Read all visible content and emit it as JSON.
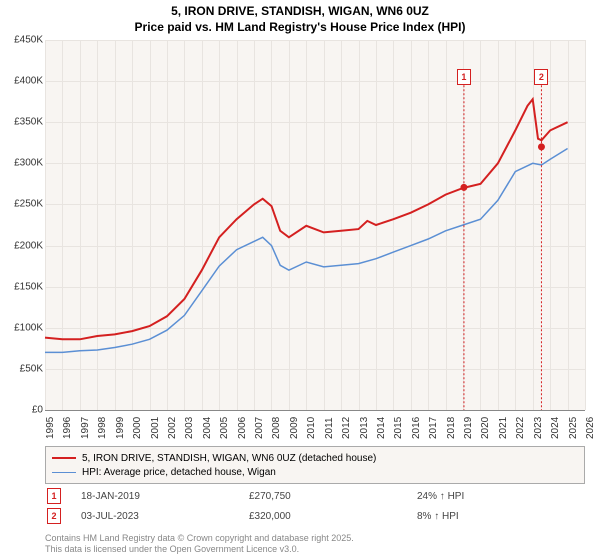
{
  "title_line1": "5, IRON DRIVE, STANDISH, WIGAN, WN6 0UZ",
  "title_line2": "Price paid vs. HM Land Registry's House Price Index (HPI)",
  "chart": {
    "type": "line",
    "background_color": "#f8f5f2",
    "grid_color": "#e8e4e0",
    "ylim": [
      0,
      450000
    ],
    "ytick_step": 50000,
    "yticks": [
      "£0",
      "£50K",
      "£100K",
      "£150K",
      "£200K",
      "£250K",
      "£300K",
      "£350K",
      "£400K",
      "£450K"
    ],
    "xlim": [
      1995,
      2026
    ],
    "xticks": [
      1995,
      1996,
      1997,
      1998,
      1999,
      2000,
      2001,
      2002,
      2003,
      2004,
      2005,
      2006,
      2007,
      2008,
      2009,
      2010,
      2011,
      2012,
      2013,
      2014,
      2015,
      2016,
      2017,
      2018,
      2019,
      2020,
      2021,
      2022,
      2023,
      2024,
      2025,
      2026
    ],
    "series": [
      {
        "name": "price_paid",
        "color": "#d42020",
        "width": 2,
        "points": [
          [
            1995,
            88000
          ],
          [
            1996,
            86000
          ],
          [
            1997,
            86000
          ],
          [
            1998,
            90000
          ],
          [
            1999,
            92000
          ],
          [
            2000,
            96000
          ],
          [
            2001,
            102000
          ],
          [
            2002,
            114000
          ],
          [
            2003,
            135000
          ],
          [
            2004,
            170000
          ],
          [
            2005,
            210000
          ],
          [
            2006,
            232000
          ],
          [
            2007,
            250000
          ],
          [
            2007.5,
            257000
          ],
          [
            2008,
            248000
          ],
          [
            2008.5,
            218000
          ],
          [
            2009,
            210000
          ],
          [
            2010,
            224000
          ],
          [
            2011,
            216000
          ],
          [
            2012,
            218000
          ],
          [
            2013,
            220000
          ],
          [
            2013.5,
            230000
          ],
          [
            2014,
            225000
          ],
          [
            2015,
            232000
          ],
          [
            2016,
            240000
          ],
          [
            2017,
            250000
          ],
          [
            2018,
            262000
          ],
          [
            2019,
            270000
          ],
          [
            2020,
            275000
          ],
          [
            2021,
            300000
          ],
          [
            2022,
            340000
          ],
          [
            2022.7,
            370000
          ],
          [
            2023,
            378000
          ],
          [
            2023.3,
            330000
          ],
          [
            2023.5,
            328000
          ],
          [
            2024,
            340000
          ],
          [
            2025,
            350000
          ]
        ]
      },
      {
        "name": "hpi",
        "color": "#5b8fd4",
        "width": 1.5,
        "points": [
          [
            1995,
            70000
          ],
          [
            1996,
            70000
          ],
          [
            1997,
            72000
          ],
          [
            1998,
            73000
          ],
          [
            1999,
            76000
          ],
          [
            2000,
            80000
          ],
          [
            2001,
            86000
          ],
          [
            2002,
            97000
          ],
          [
            2003,
            115000
          ],
          [
            2004,
            145000
          ],
          [
            2005,
            175000
          ],
          [
            2006,
            195000
          ],
          [
            2007,
            205000
          ],
          [
            2007.5,
            210000
          ],
          [
            2008,
            200000
          ],
          [
            2008.5,
            176000
          ],
          [
            2009,
            170000
          ],
          [
            2010,
            180000
          ],
          [
            2011,
            174000
          ],
          [
            2012,
            176000
          ],
          [
            2013,
            178000
          ],
          [
            2014,
            184000
          ],
          [
            2015,
            192000
          ],
          [
            2016,
            200000
          ],
          [
            2017,
            208000
          ],
          [
            2018,
            218000
          ],
          [
            2019,
            225000
          ],
          [
            2020,
            232000
          ],
          [
            2021,
            255000
          ],
          [
            2022,
            290000
          ],
          [
            2023,
            300000
          ],
          [
            2023.5,
            298000
          ],
          [
            2024,
            305000
          ],
          [
            2025,
            318000
          ]
        ]
      }
    ],
    "sale_markers": [
      {
        "label": "1",
        "x": 2019.05,
        "y": 270750,
        "top_y": 395000
      },
      {
        "label": "2",
        "x": 2023.5,
        "y": 320000,
        "top_y": 395000
      }
    ],
    "sale_dot_color": "#d42020"
  },
  "legend": {
    "items": [
      {
        "color": "#d42020",
        "width": 2,
        "label": "5, IRON DRIVE, STANDISH, WIGAN, WN6 0UZ (detached house)"
      },
      {
        "color": "#5b8fd4",
        "width": 1.5,
        "label": "HPI: Average price, detached house, Wigan"
      }
    ]
  },
  "sales": [
    {
      "marker": "1",
      "date": "18-JAN-2019",
      "price": "£270,750",
      "delta": "24% ↑ HPI"
    },
    {
      "marker": "2",
      "date": "03-JUL-2023",
      "price": "£320,000",
      "delta": "8% ↑ HPI"
    }
  ],
  "footer": {
    "line1": "Contains HM Land Registry data © Crown copyright and database right 2025.",
    "line2": "This data is licensed under the Open Government Licence v3.0."
  }
}
